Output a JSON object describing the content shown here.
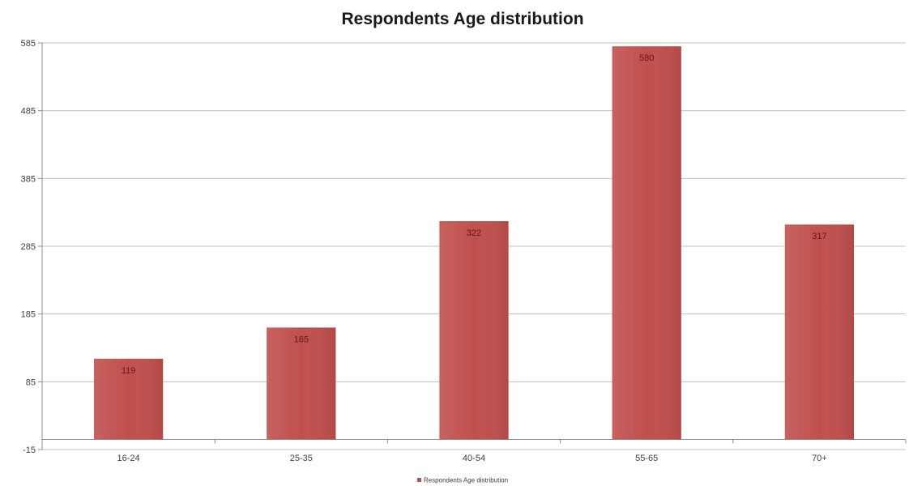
{
  "chart_data": {
    "type": "bar",
    "title": "Respondents Age distribution",
    "categories": [
      "16-24",
      "25-35",
      "40-54",
      "55-65",
      "70+"
    ],
    "series": [
      {
        "name": "Respondents Age distribution",
        "values": [
          119,
          165,
          322,
          580,
          317
        ],
        "data_labels": [
          "119",
          "165",
          "322",
          "580",
          "317"
        ]
      }
    ],
    "y_ticks": [
      "585",
      "485",
      "385",
      "285",
      "185",
      "85",
      "-15"
    ],
    "ylim": [
      -15,
      585
    ],
    "grid": true,
    "legend_position": "bottom",
    "bar_color": "#c0504d"
  }
}
